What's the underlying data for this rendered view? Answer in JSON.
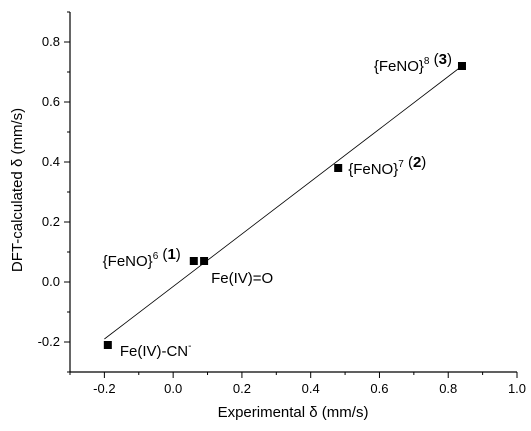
{
  "chart_data": {
    "type": "scatter",
    "xlabel": "Experimental δ (mm/s)",
    "ylabel": "DFT-calculated δ (mm/s)",
    "xlim": [
      -0.3,
      1.0
    ],
    "ylim": [
      -0.3,
      0.9
    ],
    "xticks": [
      -0.2,
      0.0,
      0.2,
      0.4,
      0.6,
      0.8,
      1.0
    ],
    "xtick_labels": [
      "-0.2",
      "0.0",
      "0.2",
      "0.4",
      "0.6",
      "0.8",
      "1.0"
    ],
    "yticks": [
      -0.2,
      0.0,
      0.2,
      0.4,
      0.6,
      0.8
    ],
    "ytick_labels": [
      "-0.2",
      "0.0",
      "0.2",
      "0.4",
      "0.6",
      "0.8"
    ],
    "grid": false,
    "series": [
      {
        "marker": "square",
        "color": "#000000",
        "points": [
          {
            "x": -0.19,
            "y": -0.21
          },
          {
            "x": 0.06,
            "y": 0.07
          },
          {
            "x": 0.09,
            "y": 0.07
          },
          {
            "x": 0.48,
            "y": 0.38
          },
          {
            "x": 0.84,
            "y": 0.72
          }
        ]
      }
    ],
    "fit_line": {
      "x": [
        -0.2,
        0.84
      ],
      "y": [
        -0.19,
        0.72
      ]
    },
    "annotations": [
      {
        "base": "{FeNO}",
        "sup": "8",
        "mid": " (",
        "bold": "3",
        "tail": ")",
        "x": 0.84,
        "y": 0.72
      },
      {
        "base": "{FeNO}",
        "sup": "7",
        "mid": " (",
        "bold": "2",
        "tail": ")",
        "x": 0.48,
        "y": 0.38
      },
      {
        "base": "{FeNO}",
        "sup": "6",
        "mid": " (",
        "bold": "1",
        "tail": ")",
        "x": 0.06,
        "y": 0.07
      },
      {
        "base": "Fe(IV)=O",
        "sup": "",
        "mid": "",
        "bold": "",
        "tail": "",
        "x": 0.09,
        "y": 0.07
      },
      {
        "base": "Fe(IV)-CN",
        "sup": "-",
        "mid": "",
        "bold": "",
        "tail": "",
        "x": -0.19,
        "y": -0.21
      }
    ]
  }
}
